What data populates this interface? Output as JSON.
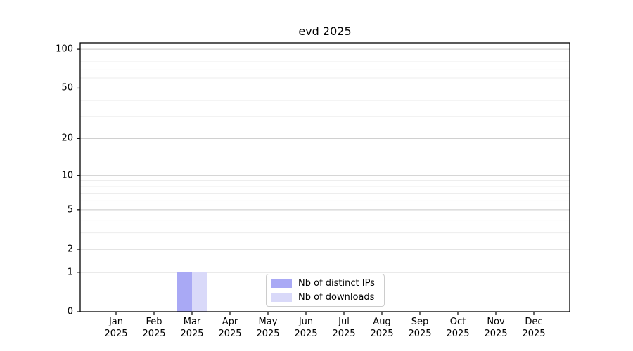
{
  "chart_data": {
    "type": "bar",
    "title": "evd 2025",
    "categories": [
      "Jan",
      "Feb",
      "Mar",
      "Apr",
      "May",
      "Jun",
      "Jul",
      "Aug",
      "Sep",
      "Oct",
      "Nov",
      "Dec"
    ],
    "x_tick_year": "2025",
    "series": [
      {
        "name": "Nb of distinct IPs",
        "color": "#a9a9f5",
        "values": [
          0,
          0,
          1,
          0,
          0,
          0,
          0,
          0,
          0,
          0,
          0,
          0
        ]
      },
      {
        "name": "Nb of downloads",
        "color": "#d9d9f9",
        "values": [
          0,
          0,
          1,
          0,
          0,
          0,
          0,
          0,
          0,
          0,
          0,
          0
        ]
      }
    ],
    "y_scale": "log1p",
    "ylim": [
      0,
      112
    ],
    "y_major_ticks": [
      0,
      1,
      2,
      5,
      10,
      20,
      50,
      100
    ],
    "y_minor_ticks": [
      3,
      4,
      6,
      7,
      8,
      9,
      30,
      40,
      60,
      70,
      80,
      90
    ],
    "grid": true,
    "legend": {
      "position": "lower center"
    },
    "colors": {
      "grid_major": "#c9c9c9",
      "grid_minor": "#ededed",
      "spine": "#000000",
      "text": "#000000",
      "background": "#ffffff"
    }
  }
}
